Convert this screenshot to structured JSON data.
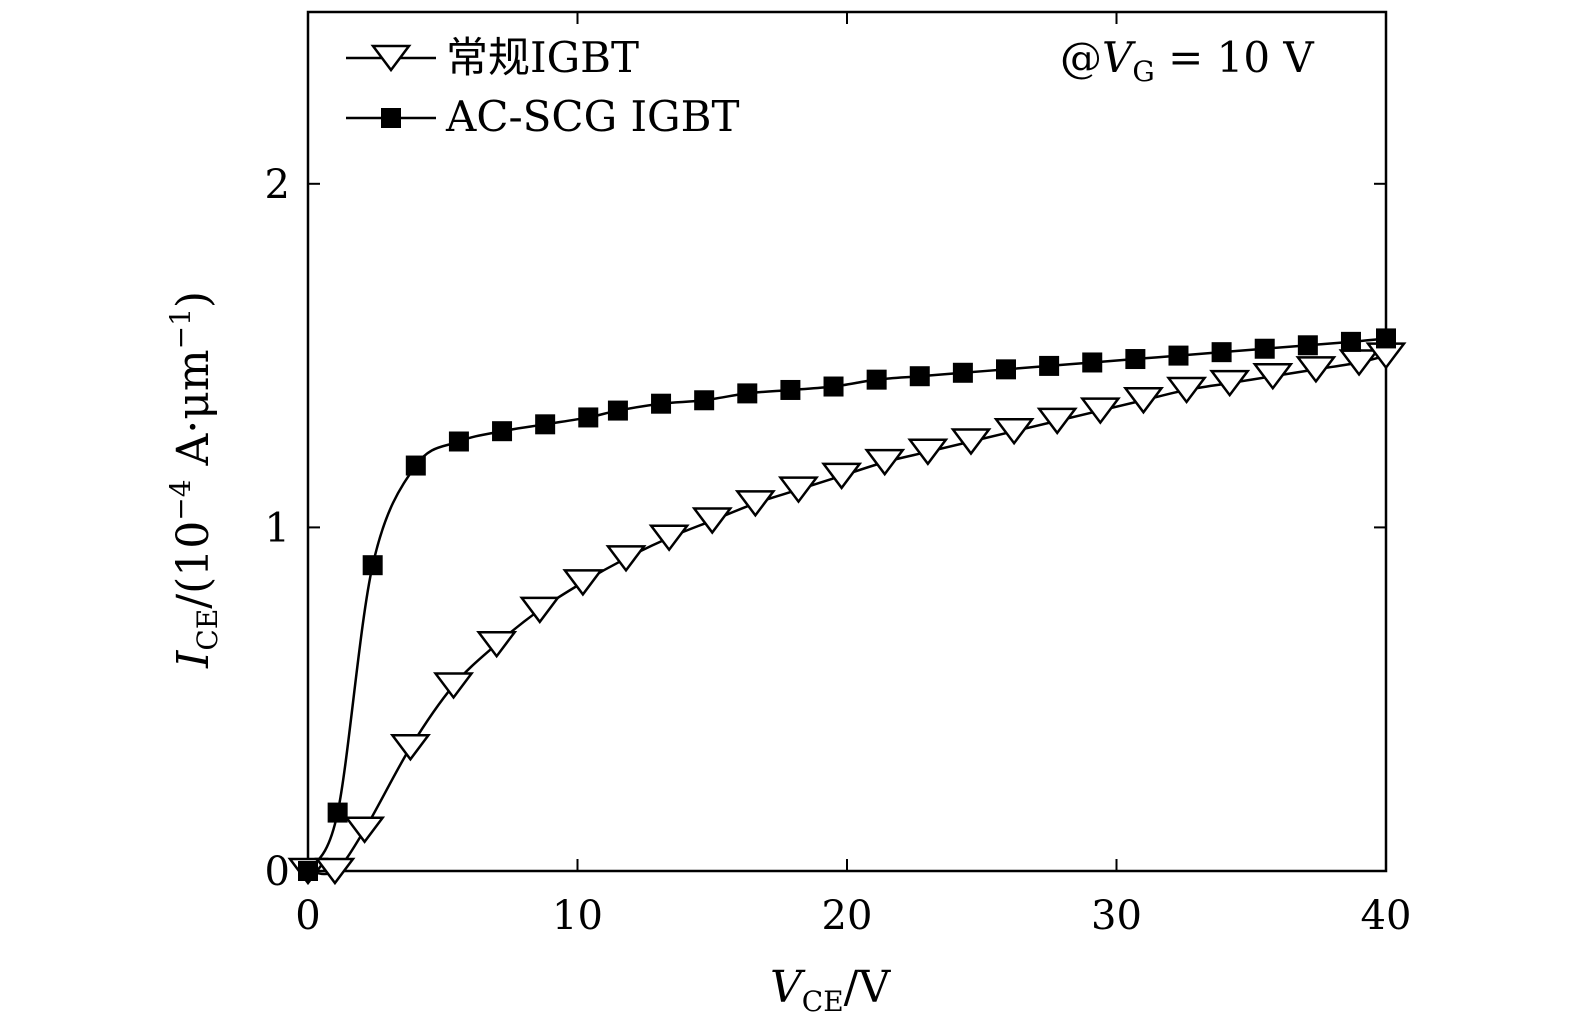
{
  "chart_data": {
    "type": "line",
    "title": "",
    "annotation": "@V_G = 10 V",
    "annotation_parts": {
      "prefix": "@",
      "var": "V",
      "sub": "G",
      "suffix": " = 10 V"
    },
    "xlabel": "V_CE/V",
    "xlabel_parts": {
      "var": "V",
      "sub": "CE",
      "suffix": "/V"
    },
    "ylabel": "I_CE/(10^-4 A·μm^-1)",
    "ylabel_parts": {
      "var": "I",
      "sub": "CE",
      "mid": "/(10",
      "exp1": "−4",
      "unit": " A·μm",
      "exp2": "−1",
      "close": ")"
    },
    "xlim": [
      0,
      40
    ],
    "ylim": [
      0,
      2.5
    ],
    "xticks": [
      0,
      10,
      20,
      30,
      40
    ],
    "yticks": [
      0,
      1,
      2
    ],
    "grid": false,
    "legend_position": "top-left",
    "series": [
      {
        "name": "常规IGBT",
        "marker": "triangle-down-open",
        "x": [
          0,
          1,
          2.1,
          3.8,
          5.4,
          7.0,
          8.6,
          10.2,
          11.8,
          13.4,
          15.0,
          16.6,
          18.2,
          19.8,
          21.4,
          23.0,
          24.6,
          26.2,
          27.8,
          29.4,
          31.0,
          32.6,
          34.2,
          35.8,
          37.4,
          39.0,
          40
        ],
        "values": [
          0,
          0,
          0.12,
          0.36,
          0.54,
          0.66,
          0.76,
          0.84,
          0.91,
          0.97,
          1.02,
          1.07,
          1.11,
          1.15,
          1.19,
          1.22,
          1.25,
          1.28,
          1.31,
          1.34,
          1.37,
          1.4,
          1.42,
          1.44,
          1.46,
          1.48,
          1.5
        ]
      },
      {
        "name": "AC-SCG IGBT",
        "marker": "square-filled",
        "x": [
          0,
          1.1,
          2.4,
          4.0,
          5.6,
          7.2,
          8.8,
          10.4,
          11.5,
          13.1,
          14.7,
          16.3,
          17.9,
          19.5,
          21.1,
          22.7,
          24.3,
          25.9,
          27.5,
          29.1,
          30.7,
          32.3,
          33.9,
          35.5,
          37.1,
          38.7,
          40
        ],
        "values": [
          0,
          0.17,
          0.89,
          1.18,
          1.25,
          1.28,
          1.3,
          1.32,
          1.34,
          1.36,
          1.37,
          1.39,
          1.4,
          1.41,
          1.43,
          1.44,
          1.45,
          1.46,
          1.47,
          1.48,
          1.49,
          1.5,
          1.51,
          1.52,
          1.53,
          1.54,
          1.55
        ]
      }
    ]
  },
  "colors": {
    "line": "#000000",
    "background": "#ffffff"
  }
}
